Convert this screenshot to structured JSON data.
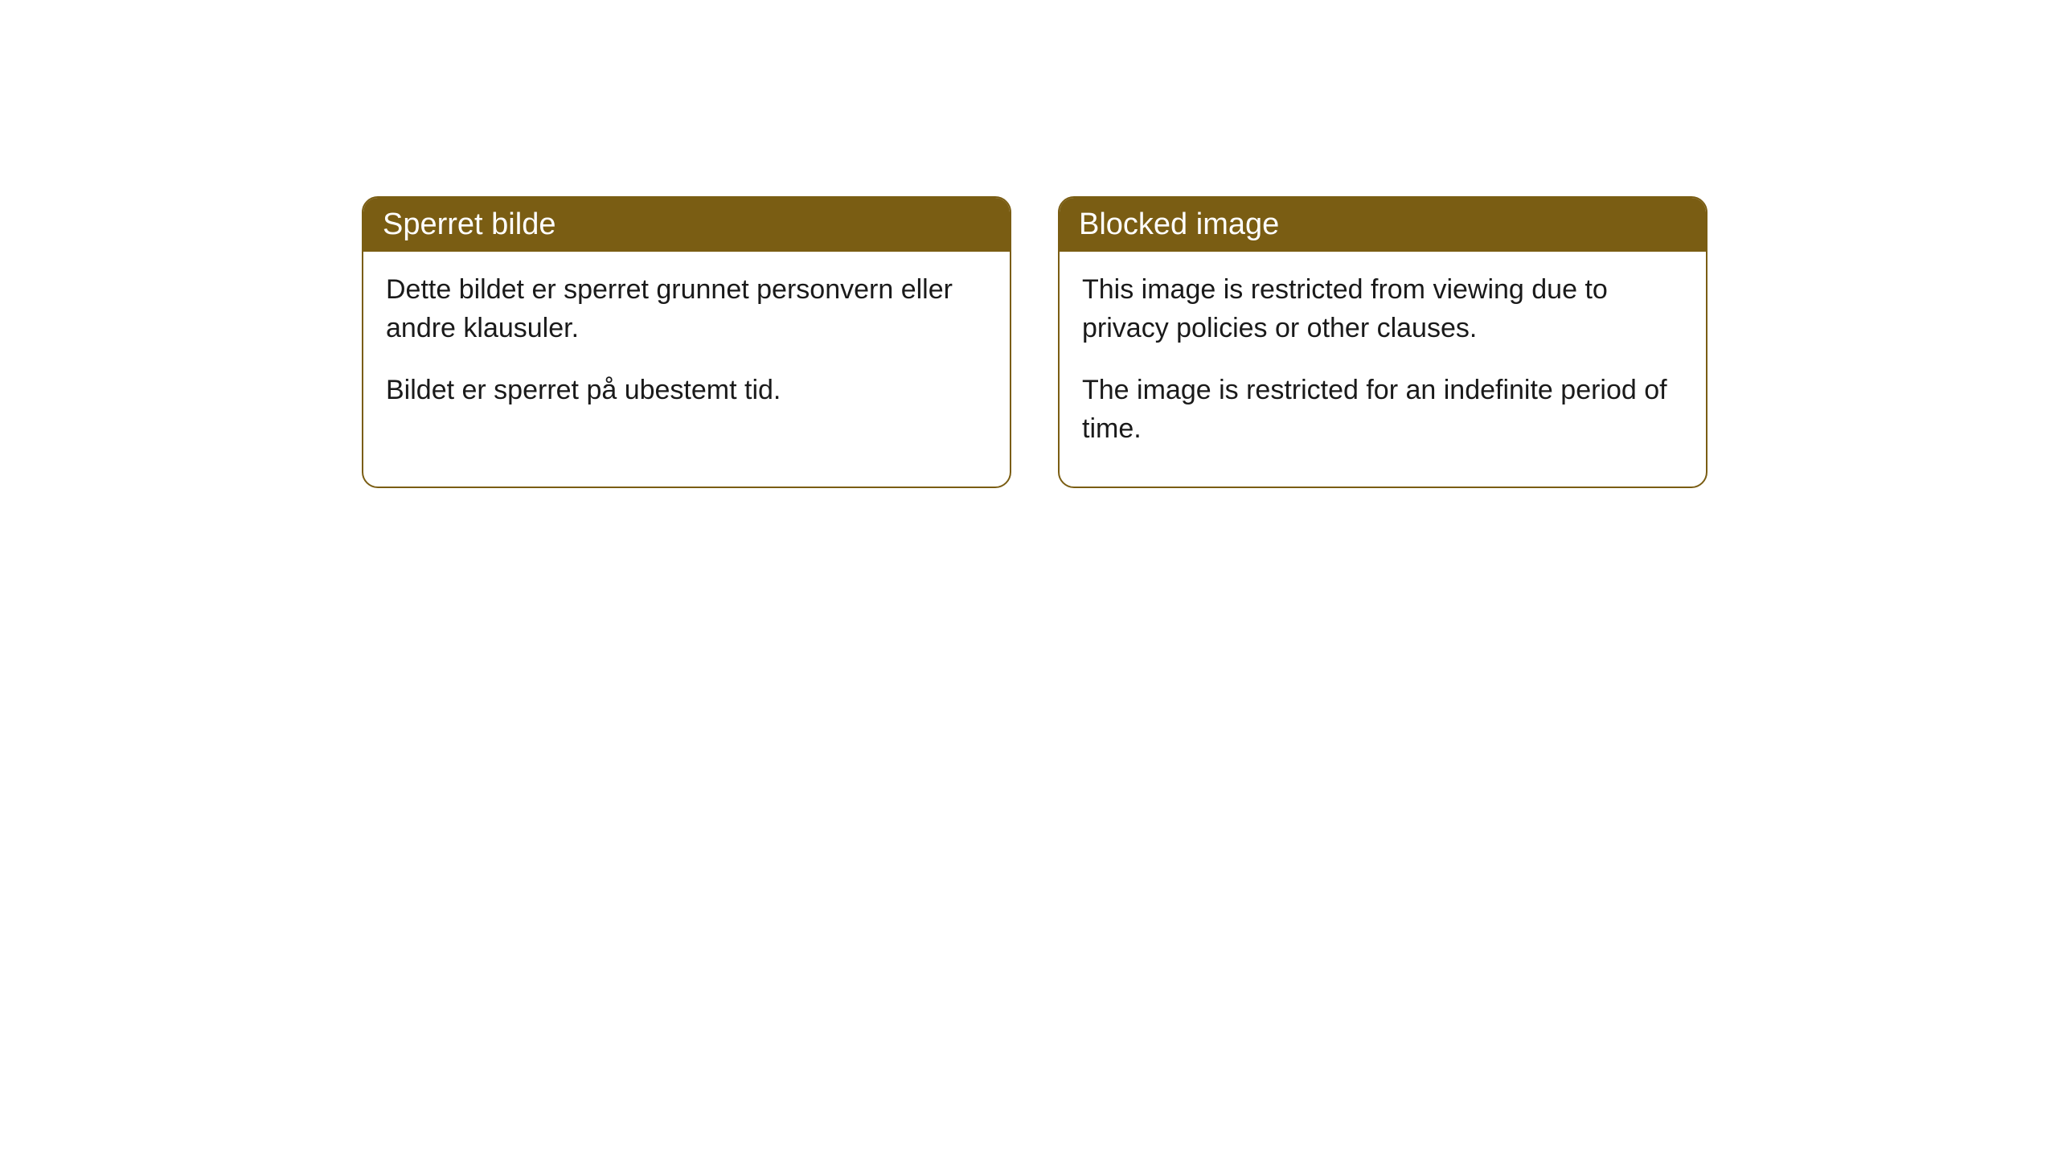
{
  "cards": [
    {
      "title": "Sperret bilde",
      "paragraph1": "Dette bildet er sperret grunnet personvern eller andre klausuler.",
      "paragraph2": "Bildet er sperret på ubestemt tid."
    },
    {
      "title": "Blocked image",
      "paragraph1": "This image is restricted from viewing due to privacy policies or other clauses.",
      "paragraph2": "The image is restricted for an indefinite period of time."
    }
  ],
  "styling": {
    "header_bg_color": "#7a5d13",
    "header_text_color": "#ffffff",
    "border_color": "#7a5d13",
    "body_bg_color": "#ffffff",
    "body_text_color": "#1a1a1a",
    "border_radius": 20,
    "header_fontsize": 38,
    "body_fontsize": 34
  }
}
